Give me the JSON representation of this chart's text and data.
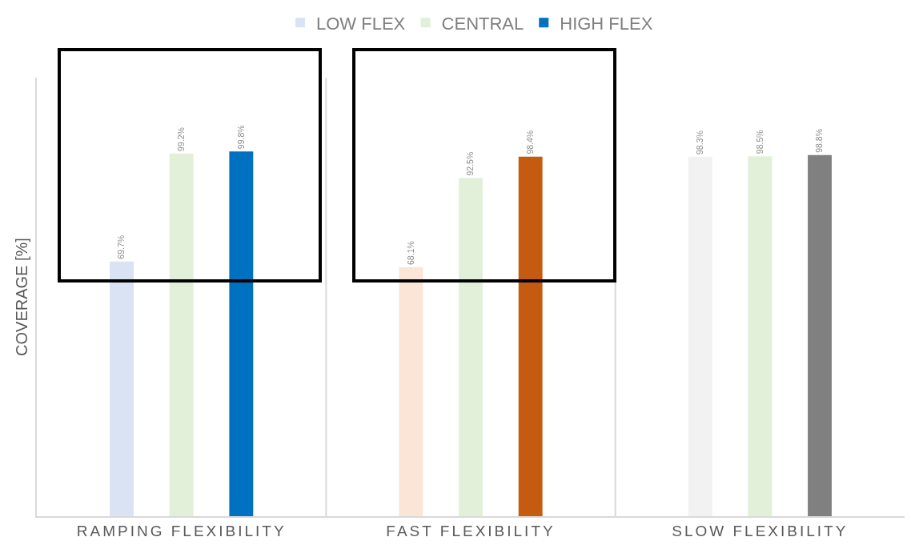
{
  "chart_data": {
    "type": "bar",
    "ylabel": "COVERAGE [%]",
    "categories": [
      "RAMPING FLEXIBILITY",
      "FAST FLEXIBILITY",
      "SLOW FLEXIBILITY"
    ],
    "series": [
      {
        "name": "LOW FLEX",
        "colors": [
          "#dae3f3",
          "#fbe5d6",
          "#f2f2f2"
        ],
        "values": [
          69.7,
          68.1,
          98.3
        ],
        "value_labels": [
          "69.7%",
          "68.1%",
          "98.3%"
        ]
      },
      {
        "name": "CENTRAL",
        "colors": [
          "#e2f0d9",
          "#e2f0d9",
          "#e2f0d9"
        ],
        "values": [
          99.2,
          92.5,
          98.5
        ],
        "value_labels": [
          "99.2%",
          "92.5%",
          "98.5%"
        ]
      },
      {
        "name": "HIGH FLEX",
        "colors": [
          "#0070c0",
          "#c55a11",
          "#808080"
        ],
        "values": [
          99.8,
          98.4,
          98.8
        ],
        "value_labels": [
          "99.8%",
          "98.4%",
          "98.8%"
        ]
      }
    ],
    "ylim": [
      0,
      120
    ],
    "grid": false,
    "legend": "top",
    "tick_labels": "x"
  }
}
